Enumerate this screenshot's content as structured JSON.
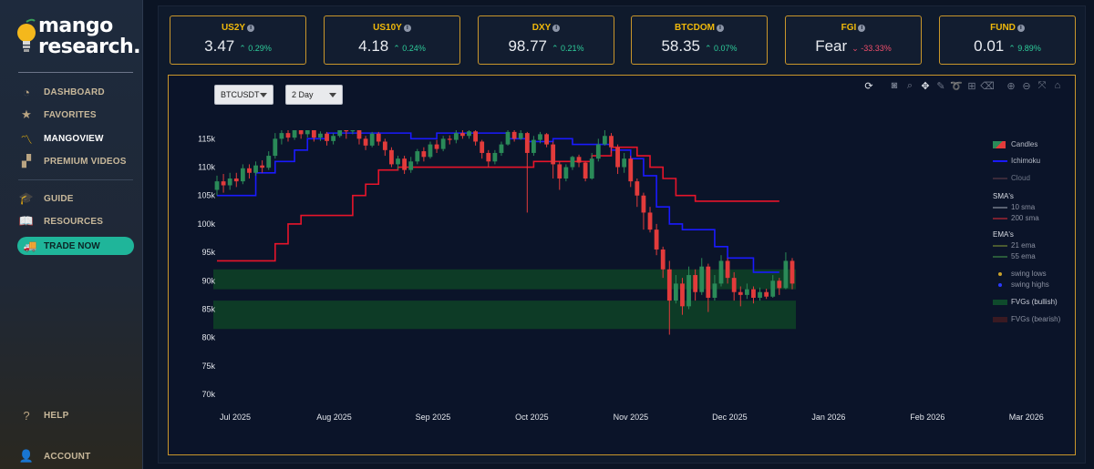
{
  "brand": {
    "name_line1": "mango",
    "name_line2": "research."
  },
  "sidebar": {
    "items": [
      {
        "label": "DASHBOARD",
        "icon": "gauge-icon",
        "glyph": "◔"
      },
      {
        "label": "FAVORITES",
        "icon": "star-icon",
        "glyph": "★"
      },
      {
        "label": "MANGOVIEW",
        "icon": "chart-line-icon",
        "glyph": "〽",
        "active": true
      },
      {
        "label": "PREMIUM VIDEOS",
        "icon": "clapperboard-icon",
        "glyph": "▞"
      },
      {
        "label": "GUIDE",
        "icon": "graduation-cap-icon",
        "glyph": "🎓"
      },
      {
        "label": "RESOURCES",
        "icon": "book-icon",
        "glyph": "📖"
      }
    ],
    "trade": {
      "label": "TRADE NOW",
      "icon": "truck-icon",
      "glyph": "🚚"
    },
    "help": {
      "label": "HELP",
      "glyph": "?"
    },
    "account": {
      "label": "ACCOUNT",
      "glyph": "👤"
    }
  },
  "tickers": [
    {
      "name": "US2Y",
      "value": "3.47",
      "change": "0.29%",
      "dir": "up"
    },
    {
      "name": "US10Y",
      "value": "4.18",
      "change": "0.24%",
      "dir": "up"
    },
    {
      "name": "DXY",
      "value": "98.77",
      "change": "0.21%",
      "dir": "up"
    },
    {
      "name": "BTCDOM",
      "value": "58.35",
      "change": "0.07%",
      "dir": "up"
    },
    {
      "name": "FGI",
      "value": "Fear",
      "change": "-33.33%",
      "dir": "down"
    },
    {
      "name": "FUND",
      "value": "0.01",
      "change": "9.89%",
      "dir": "up"
    }
  ],
  "controls": {
    "symbol": "BTCUSDT",
    "interval": "2 Day"
  },
  "toolbar_icons": [
    "refresh-icon",
    "camera-icon",
    "zoom-icon",
    "pan-icon",
    "pencil-icon",
    "lasso-icon",
    "zoom-in-icon",
    "zoom-out-icon",
    "autoscale-icon",
    "reset-axes-icon"
  ],
  "legend": {
    "candles": "Candles",
    "ichimoku": "Ichimoku",
    "cloud": "Cloud",
    "sma_head": "SMA's",
    "sma10": "10 sma",
    "sma200": "200 sma",
    "ema_head": "EMA's",
    "ema21": "21 ema",
    "ema55": "55 ema",
    "swing_lows": "swing lows",
    "swing_highs": "swing highs",
    "fvg_bull": "FVGs (bullish)",
    "fvg_bear": "FVGs (bearish)"
  },
  "colors": {
    "up": "#2ecc9a",
    "down": "#ef4d6a",
    "accent": "#f0b90b",
    "candle_up": "#2a8a58",
    "candle_down": "#e23b3b",
    "ichimoku": "#1a1aff",
    "sma200": "#e8142a",
    "fvg": "#0d3b26"
  },
  "chart_data": {
    "type": "candlestick",
    "x_ticks": [
      "Jul 2025",
      "Aug 2025",
      "Sep 2025",
      "Oct 2025",
      "Nov 2025",
      "Dec 2025",
      "Jan 2026",
      "Feb 2026",
      "Mar 2026"
    ],
    "y_ticks": [
      "115k",
      "110k",
      "105k",
      "100k",
      "95k",
      "90k",
      "85k",
      "80k",
      "75k",
      "70k"
    ],
    "ylim": [
      70000,
      116500
    ],
    "fvg_bullish": [
      [
        88500,
        92000
      ],
      [
        81500,
        86500
      ]
    ],
    "sma200": [
      [
        0,
        93500
      ],
      [
        7,
        93500
      ],
      [
        9,
        96500
      ],
      [
        11,
        100000
      ],
      [
        13,
        101500
      ],
      [
        16,
        101500
      ],
      [
        19,
        101500
      ],
      [
        21,
        105000
      ],
      [
        23,
        107000
      ],
      [
        25,
        109500
      ],
      [
        28,
        110000
      ],
      [
        31,
        110000
      ],
      [
        34,
        110000
      ],
      [
        37,
        110000
      ],
      [
        40,
        110000
      ],
      [
        44,
        110000
      ],
      [
        47,
        110000
      ],
      [
        49,
        111000
      ],
      [
        52,
        111000
      ],
      [
        56,
        111000
      ],
      [
        58,
        112000
      ],
      [
        61,
        113500
      ],
      [
        64,
        113500
      ],
      [
        65,
        112000
      ],
      [
        67,
        110000
      ],
      [
        69,
        108000
      ],
      [
        71,
        105000
      ],
      [
        74,
        104000
      ],
      [
        87,
        104000
      ]
    ],
    "ichimoku": [
      [
        0,
        105000
      ],
      [
        4,
        105000
      ],
      [
        6,
        109000
      ],
      [
        9,
        111000
      ],
      [
        12,
        113000
      ],
      [
        14,
        115000
      ],
      [
        17,
        116000
      ],
      [
        21,
        116000
      ],
      [
        25,
        116000
      ],
      [
        30,
        115000
      ],
      [
        34,
        116000
      ],
      [
        38,
        116000
      ],
      [
        41,
        116000
      ],
      [
        45,
        115000
      ],
      [
        48,
        114500
      ],
      [
        52,
        115000
      ],
      [
        55,
        114000
      ],
      [
        59,
        114000
      ],
      [
        61,
        113000
      ],
      [
        64,
        111500
      ],
      [
        66,
        108500
      ],
      [
        68,
        103000
      ],
      [
        70,
        100000
      ],
      [
        72,
        99000
      ],
      [
        74,
        99000
      ],
      [
        77,
        96000
      ],
      [
        79,
        94000
      ],
      [
        81,
        94000
      ],
      [
        83,
        91500
      ],
      [
        85,
        91500
      ],
      [
        87,
        91500
      ]
    ],
    "candles": [
      [
        106000,
        107500,
        105000,
        108500
      ],
      [
        107500,
        106800,
        105500,
        108800
      ],
      [
        106800,
        108000,
        106000,
        109000
      ],
      [
        108000,
        107500,
        106500,
        109000
      ],
      [
        107500,
        109800,
        107000,
        110500
      ],
      [
        109800,
        109000,
        108000,
        110500
      ],
      [
        109000,
        110300,
        108500,
        111000
      ],
      [
        110300,
        109900,
        109000,
        111200
      ],
      [
        109900,
        112000,
        109500,
        112800
      ],
      [
        112000,
        115000,
        111500,
        116000
      ],
      [
        115000,
        116000,
        114000,
        116500
      ],
      [
        116000,
        115200,
        114500,
        116500
      ],
      [
        115200,
        116500,
        114800,
        116800
      ],
      [
        116500,
        115800,
        115000,
        116600
      ],
      [
        115800,
        116500,
        115200,
        116800
      ],
      [
        116500,
        115200,
        114500,
        116800
      ],
      [
        115200,
        115900,
        114600,
        116300
      ],
      [
        115900,
        114600,
        113800,
        116200
      ],
      [
        114600,
        115500,
        114000,
        116000
      ],
      [
        115500,
        116500,
        115200,
        116800
      ],
      [
        116500,
        116300,
        115000,
        116800
      ],
      [
        116300,
        116600,
        115800,
        116800
      ],
      [
        116600,
        115000,
        114000,
        116800
      ],
      [
        115000,
        113800,
        113000,
        115500
      ],
      [
        113800,
        115900,
        113500,
        116200
      ],
      [
        115900,
        114500,
        113800,
        116200
      ],
      [
        114500,
        113000,
        112000,
        115000
      ],
      [
        113000,
        110500,
        110000,
        113500
      ],
      [
        110500,
        111500,
        109500,
        112000
      ],
      [
        111500,
        109500,
        108800,
        112000
      ],
      [
        109500,
        111000,
        109000,
        111800
      ],
      [
        111000,
        112800,
        110500,
        113200
      ],
      [
        112800,
        111800,
        111000,
        113500
      ],
      [
        111800,
        114000,
        111500,
        114500
      ],
      [
        114000,
        113200,
        112500,
        114800
      ],
      [
        113200,
        115000,
        112800,
        115500
      ],
      [
        115000,
        114800,
        114000,
        115600
      ],
      [
        114800,
        116000,
        114200,
        116500
      ],
      [
        116000,
        115500,
        115000,
        116600
      ],
      [
        115500,
        116300,
        115000,
        116800
      ],
      [
        116300,
        114500,
        113800,
        116500
      ],
      [
        114500,
        112500,
        111500,
        114800
      ],
      [
        112500,
        111000,
        110000,
        113000
      ],
      [
        111000,
        112500,
        110500,
        113000
      ],
      [
        112500,
        114000,
        112000,
        114500
      ],
      [
        114000,
        116200,
        113800,
        116800
      ],
      [
        116200,
        115000,
        114500,
        116500
      ],
      [
        115000,
        116000,
        114800,
        116500
      ],
      [
        116000,
        112500,
        102000,
        116200
      ],
      [
        112500,
        114800,
        112000,
        115500
      ],
      [
        114800,
        115800,
        114200,
        116200
      ],
      [
        115800,
        114000,
        113500,
        116000
      ],
      [
        114000,
        110500,
        108000,
        114500
      ],
      [
        110500,
        108000,
        106000,
        111000
      ],
      [
        108000,
        110000,
        107500,
        110500
      ],
      [
        110000,
        111800,
        109500,
        112000
      ],
      [
        111800,
        110800,
        110000,
        112200
      ],
      [
        110800,
        108000,
        107500,
        111000
      ],
      [
        108000,
        111500,
        107800,
        112500
      ],
      [
        111500,
        114000,
        111000,
        115000
      ],
      [
        114000,
        115500,
        113800,
        116500
      ],
      [
        115500,
        113500,
        112500,
        116000
      ],
      [
        113500,
        110000,
        108800,
        114000
      ],
      [
        110000,
        111500,
        109000,
        112500
      ],
      [
        111500,
        107500,
        106500,
        112000
      ],
      [
        107500,
        105000,
        103000,
        108000
      ],
      [
        105000,
        102000,
        99000,
        105500
      ],
      [
        102000,
        99000,
        98500,
        103000
      ],
      [
        99000,
        95500,
        94500,
        100000
      ],
      [
        95500,
        92000,
        90500,
        96000
      ],
      [
        92000,
        86500,
        80500,
        93500
      ],
      [
        86500,
        89500,
        86000,
        91000
      ],
      [
        89500,
        85500,
        84000,
        90500
      ],
      [
        85500,
        91000,
        85000,
        92500
      ],
      [
        91000,
        88000,
        86500,
        92000
      ],
      [
        88000,
        92500,
        87500,
        94000
      ],
      [
        92500,
        87000,
        84500,
        93000
      ],
      [
        87000,
        89500,
        86500,
        91000
      ],
      [
        89500,
        93500,
        89000,
        94500
      ],
      [
        93500,
        90500,
        89500,
        94000
      ],
      [
        90500,
        88000,
        86500,
        91500
      ],
      [
        88000,
        87500,
        85500,
        89000
      ],
      [
        87500,
        88500,
        86800,
        89500
      ],
      [
        88500,
        87000,
        86000,
        89000
      ],
      [
        87000,
        88000,
        86500,
        88800
      ],
      [
        88000,
        87200,
        86800,
        88600
      ],
      [
        87200,
        90000,
        87000,
        91000
      ],
      [
        90000,
        88700,
        87500,
        90500
      ],
      [
        88700,
        93500,
        88500,
        95000
      ],
      [
        93500,
        89500,
        88500,
        94000
      ]
    ]
  }
}
